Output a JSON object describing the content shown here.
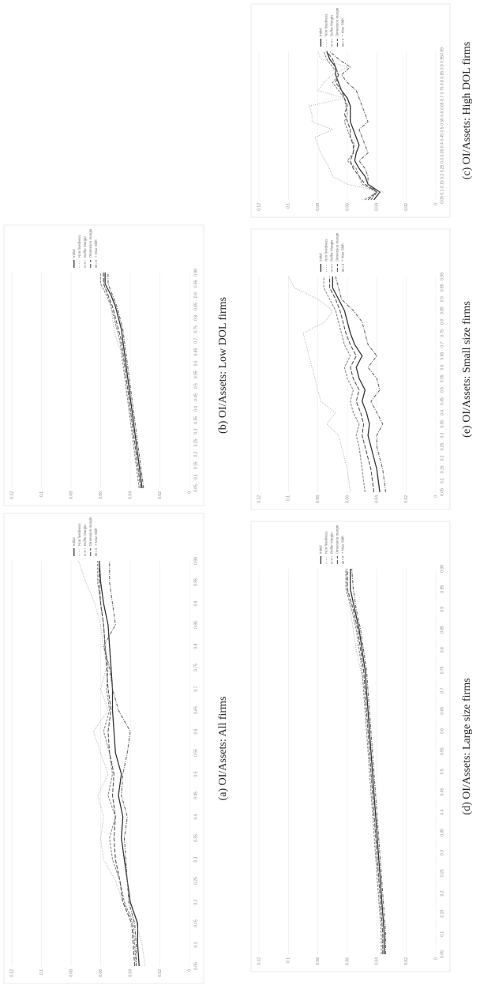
{
  "chart_data": [
    {
      "type": "line",
      "caption": "(a) OI/Assets: All firms",
      "categories": [
        "0.05",
        "0.1",
        "0.15",
        "0.2",
        "0.25",
        "0.3",
        "0.35",
        "0.4",
        "0.45",
        "0.5",
        "0.55",
        "0.6",
        "0.65",
        "0.7",
        "0.75",
        "0.8",
        "0.85",
        "0.9",
        "0.95",
        "0.99"
      ],
      "series": [
        {
          "name": "Initial",
          "color": "#333333",
          "values": [
            0.034,
            0.035,
            0.035,
            0.04,
            0.042,
            0.044,
            0.046,
            0.045,
            0.048,
            0.046,
            0.05,
            0.051,
            0.052,
            0.052,
            0.053,
            0.054,
            0.055,
            0.058,
            0.06,
            0.061
          ]
        },
        {
          "name": "Non fixedness",
          "color": "#aaaaaa",
          "values": [
            0.03,
            0.032,
            0.036,
            0.045,
            0.05,
            0.058,
            0.06,
            0.058,
            0.062,
            0.055,
            0.06,
            0.065,
            0.055,
            0.06,
            0.056,
            0.058,
            0.06,
            0.064,
            0.07,
            0.075
          ]
        },
        {
          "name": "Buffer Margin",
          "color": "#888888",
          "values": [
            0.036,
            0.037,
            0.038,
            0.044,
            0.047,
            0.052,
            0.054,
            0.05,
            0.055,
            0.052,
            0.054,
            0.058,
            0.054,
            0.056,
            0.055,
            0.057,
            0.058,
            0.06,
            0.062,
            0.062
          ]
        },
        {
          "name": "Dimension margin",
          "color": "#555555",
          "values": [
            0.037,
            0.038,
            0.039,
            0.045,
            0.047,
            0.05,
            0.051,
            0.05,
            0.052,
            0.051,
            0.054,
            0.055,
            0.053,
            0.055,
            0.056,
            0.057,
            0.058,
            0.06,
            0.061,
            0.061
          ]
        },
        {
          "name": "+ Max Shift",
          "color": "#666666",
          "values": [
            0.036,
            0.036,
            0.037,
            0.041,
            0.042,
            0.043,
            0.044,
            0.042,
            0.046,
            0.045,
            0.042,
            0.04,
            0.048,
            0.052,
            0.054,
            0.058,
            0.05,
            0.052,
            0.054,
            0.054
          ]
        }
      ],
      "ylim": [
        0,
        0.12
      ],
      "yticks": [
        0,
        0.02,
        0.04,
        0.06,
        0.08,
        0.1,
        0.12
      ],
      "grid": true,
      "legend": "right"
    },
    {
      "type": "line",
      "caption": "(b) OI/Assets: Low DOL firms",
      "categories": [
        "0.05",
        "0.1",
        "0.15",
        "0.2",
        "0.25",
        "0.3",
        "0.35",
        "0.4",
        "0.45",
        "0.5",
        "0.55",
        "0.6",
        "0.65",
        "0.7",
        "0.75",
        "0.8",
        "0.85",
        "0.9",
        "0.95",
        "0.99"
      ],
      "series": [
        {
          "name": "Initial",
          "color": "#333333",
          "values": [
            0.032,
            0.033,
            0.034,
            0.035,
            0.036,
            0.037,
            0.038,
            0.039,
            0.04,
            0.041,
            0.042,
            0.043,
            0.044,
            0.045,
            0.046,
            0.048,
            0.05,
            0.053,
            0.057,
            0.057
          ]
        },
        {
          "name": "Non fixedness",
          "color": "#aaaaaa",
          "values": [
            0.033,
            0.034,
            0.035,
            0.036,
            0.037,
            0.038,
            0.039,
            0.04,
            0.041,
            0.042,
            0.043,
            0.044,
            0.046,
            0.049,
            0.051,
            0.052,
            0.053,
            0.055,
            0.058,
            0.059
          ]
        },
        {
          "name": "Buffer Margin",
          "color": "#888888",
          "values": [
            0.034,
            0.035,
            0.036,
            0.037,
            0.038,
            0.039,
            0.04,
            0.041,
            0.042,
            0.043,
            0.044,
            0.045,
            0.046,
            0.047,
            0.049,
            0.051,
            0.053,
            0.056,
            0.06,
            0.06
          ]
        },
        {
          "name": "Dimension margin",
          "color": "#555555",
          "values": [
            0.033,
            0.034,
            0.035,
            0.036,
            0.037,
            0.038,
            0.039,
            0.04,
            0.041,
            0.042,
            0.043,
            0.044,
            0.045,
            0.046,
            0.048,
            0.05,
            0.052,
            0.055,
            0.058,
            0.058
          ]
        },
        {
          "name": "+ Max Shift",
          "color": "#666666",
          "values": [
            0.031,
            0.032,
            0.033,
            0.034,
            0.035,
            0.036,
            0.037,
            0.038,
            0.039,
            0.04,
            0.041,
            0.042,
            0.043,
            0.044,
            0.045,
            0.047,
            0.049,
            0.052,
            0.055,
            0.055
          ]
        }
      ],
      "ylim": [
        0,
        0.12
      ],
      "yticks": [
        0,
        0.02,
        0.04,
        0.06,
        0.08,
        0.1,
        0.12
      ],
      "grid": true,
      "legend": "right"
    },
    {
      "type": "line",
      "caption": "(c) OI/Assets: High DOL firms",
      "categories": [
        "0.05",
        "0.1",
        "0.15",
        "0.2",
        "0.25",
        "0.3",
        "0.35",
        "0.4",
        "0.45",
        "0.5",
        "0.55",
        "0.6",
        "0.65",
        "0.7",
        "0.75",
        "0.8",
        "0.85",
        "0.9",
        "0.95",
        "0.99"
      ],
      "series": [
        {
          "name": "Initial",
          "color": "#333333",
          "values": [
            0.042,
            0.038,
            0.046,
            0.048,
            0.052,
            0.055,
            0.054,
            0.052,
            0.054,
            0.056,
            0.058,
            0.058,
            0.058,
            0.06,
            0.064,
            0.066,
            0.068,
            0.068,
            0.072,
            0.074
          ]
        },
        {
          "name": "Non fixedness",
          "color": "#aaaaaa",
          "values": [
            0.05,
            0.036,
            0.06,
            0.07,
            0.072,
            0.075,
            0.078,
            0.08,
            0.082,
            0.07,
            0.084,
            0.084,
            0.086,
            0.062,
            0.08,
            0.076,
            0.07,
            0.06,
            0.078,
            0.08
          ]
        },
        {
          "name": "Buffer Margin",
          "color": "#888888",
          "values": [
            0.048,
            0.04,
            0.05,
            0.052,
            0.054,
            0.06,
            0.056,
            0.055,
            0.058,
            0.06,
            0.062,
            0.06,
            0.061,
            0.062,
            0.066,
            0.07,
            0.066,
            0.07,
            0.074,
            0.076
          ]
        },
        {
          "name": "Dimension margin",
          "color": "#555555",
          "values": [
            0.046,
            0.04,
            0.048,
            0.052,
            0.056,
            0.058,
            0.056,
            0.056,
            0.058,
            0.058,
            0.06,
            0.062,
            0.06,
            0.062,
            0.064,
            0.068,
            0.066,
            0.068,
            0.07,
            0.074
          ]
        },
        {
          "name": "+ Max Shift",
          "color": "#666666",
          "values": [
            0.044,
            0.04,
            0.046,
            0.046,
            0.048,
            0.052,
            0.046,
            0.048,
            0.05,
            0.052,
            0.046,
            0.048,
            0.05,
            0.052,
            0.054,
            0.06,
            0.064,
            0.058,
            0.066,
            0.072
          ]
        }
      ],
      "ylim": [
        0,
        0.12
      ],
      "yticks": [
        0,
        0.02,
        0.04,
        0.06,
        0.08,
        0.1,
        0.12
      ],
      "grid": true,
      "legend": "right"
    },
    {
      "type": "line",
      "caption": "(d) OI/Assets: Large size firms",
      "categories": [
        "0.05",
        "0.1",
        "0.15",
        "0.2",
        "0.25",
        "0.3",
        "0.35",
        "0.4",
        "0.45",
        "0.5",
        "0.55",
        "0.6",
        "0.65",
        "0.7",
        "0.75",
        "0.8",
        "0.85",
        "0.9",
        "0.95",
        "0.99"
      ],
      "series": [
        {
          "name": "Initial",
          "color": "#333333",
          "values": [
            0.035,
            0.035,
            0.036,
            0.037,
            0.038,
            0.039,
            0.04,
            0.041,
            0.042,
            0.043,
            0.044,
            0.045,
            0.046,
            0.047,
            0.048,
            0.05,
            0.052,
            0.055,
            0.058,
            0.058
          ]
        },
        {
          "name": "Non fixedness",
          "color": "#aaaaaa",
          "values": [
            0.036,
            0.036,
            0.037,
            0.038,
            0.039,
            0.04,
            0.041,
            0.042,
            0.043,
            0.044,
            0.045,
            0.046,
            0.047,
            0.048,
            0.051,
            0.054,
            0.056,
            0.058,
            0.06,
            0.061
          ]
        },
        {
          "name": "Buffer Margin",
          "color": "#888888",
          "values": [
            0.037,
            0.037,
            0.038,
            0.039,
            0.04,
            0.041,
            0.042,
            0.043,
            0.044,
            0.045,
            0.046,
            0.047,
            0.048,
            0.049,
            0.05,
            0.052,
            0.054,
            0.057,
            0.061,
            0.061
          ]
        },
        {
          "name": "Dimension margin",
          "color": "#555555",
          "values": [
            0.036,
            0.036,
            0.037,
            0.038,
            0.039,
            0.04,
            0.041,
            0.042,
            0.043,
            0.044,
            0.045,
            0.046,
            0.047,
            0.048,
            0.049,
            0.051,
            0.053,
            0.056,
            0.06,
            0.06
          ]
        },
        {
          "name": "+ Max Shift",
          "color": "#666666",
          "values": [
            0.034,
            0.034,
            0.035,
            0.036,
            0.037,
            0.038,
            0.039,
            0.04,
            0.041,
            0.042,
            0.043,
            0.044,
            0.045,
            0.046,
            0.047,
            0.049,
            0.051,
            0.054,
            0.056,
            0.057
          ]
        }
      ],
      "ylim": [
        0,
        0.12
      ],
      "yticks": [
        0,
        0.02,
        0.04,
        0.06,
        0.08,
        0.1,
        0.12
      ],
      "grid": true,
      "legend": "right"
    },
    {
      "type": "line",
      "caption": "(e) OI/Assets: Small size firms",
      "categories": [
        "0.05",
        "0.1",
        "0.15",
        "0.2",
        "0.25",
        "0.3",
        "0.35",
        "0.4",
        "0.45",
        "0.5",
        "0.55",
        "0.6",
        "0.65",
        "0.7",
        "0.75",
        "0.8",
        "0.85",
        "0.9",
        "0.95",
        "0.99"
      ],
      "series": [
        {
          "name": "Initial",
          "color": "#333333",
          "values": [
            0.038,
            0.039,
            0.04,
            0.042,
            0.044,
            0.046,
            0.045,
            0.047,
            0.05,
            0.048,
            0.052,
            0.054,
            0.05,
            0.055,
            0.058,
            0.06,
            0.062,
            0.066,
            0.07,
            0.07
          ]
        },
        {
          "name": "Non fixedness",
          "color": "#aaaaaa",
          "values": [
            0.058,
            0.059,
            0.06,
            0.062,
            0.064,
            0.066,
            0.074,
            0.068,
            0.078,
            0.08,
            0.082,
            0.084,
            0.086,
            0.088,
            0.09,
            0.075,
            0.07,
            0.08,
            0.096,
            0.1
          ]
        },
        {
          "name": "Buffer Margin",
          "color": "#888888",
          "values": [
            0.048,
            0.049,
            0.05,
            0.051,
            0.052,
            0.054,
            0.052,
            0.056,
            0.058,
            0.056,
            0.06,
            0.062,
            0.058,
            0.062,
            0.064,
            0.066,
            0.068,
            0.072,
            0.076,
            0.076
          ]
        },
        {
          "name": "Dimension margin",
          "color": "#555555",
          "values": [
            0.042,
            0.043,
            0.044,
            0.046,
            0.048,
            0.05,
            0.049,
            0.051,
            0.054,
            0.052,
            0.056,
            0.058,
            0.054,
            0.058,
            0.061,
            0.063,
            0.065,
            0.068,
            0.072,
            0.072
          ]
        },
        {
          "name": "+ Max Shift",
          "color": "#666666",
          "values": [
            0.034,
            0.035,
            0.036,
            0.038,
            0.04,
            0.04,
            0.036,
            0.04,
            0.044,
            0.038,
            0.04,
            0.046,
            0.04,
            0.046,
            0.048,
            0.05,
            0.056,
            0.064,
            0.066,
            0.068
          ]
        }
      ],
      "ylim": [
        0,
        0.12
      ],
      "yticks": [
        0,
        0.02,
        0.04,
        0.06,
        0.08,
        0.1,
        0.12
      ],
      "grid": true,
      "legend": "right"
    }
  ]
}
